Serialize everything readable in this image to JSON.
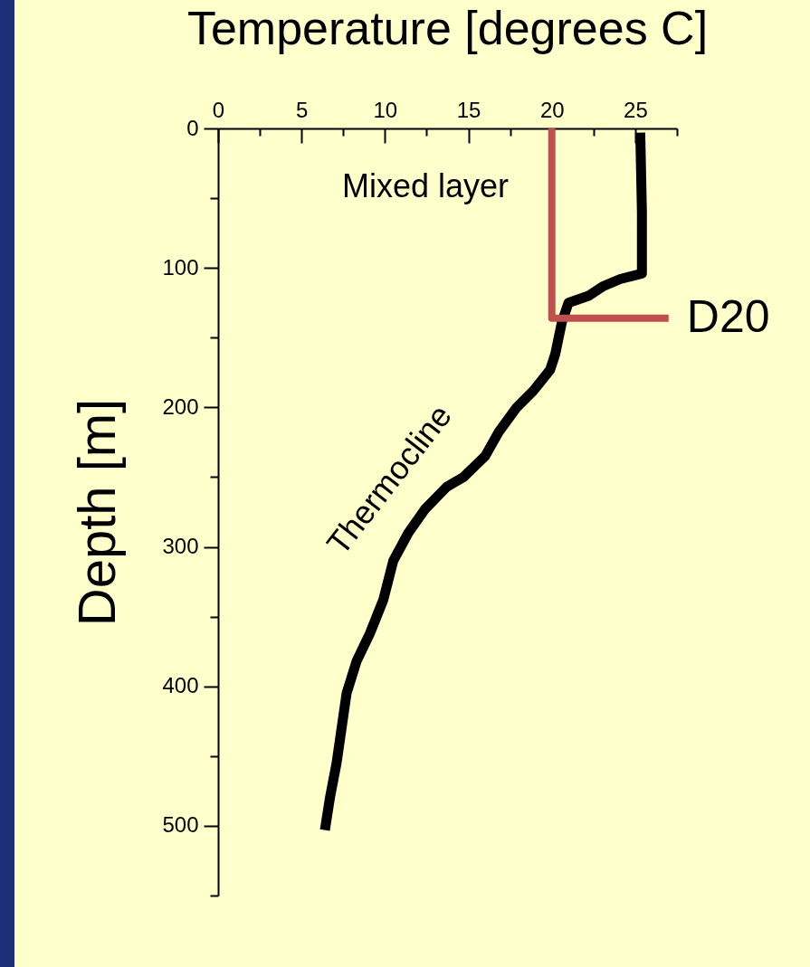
{
  "chart_data": {
    "type": "line",
    "title": "Temperature [degrees C]",
    "ylabel": "Depth [m]",
    "xlim": [
      0,
      27.5
    ],
    "ylim": [
      550,
      0
    ],
    "xticks": [
      0,
      {
        "value": 2.5,
        "label": null
      },
      5,
      {
        "value": 7.5,
        "label": null
      },
      10,
      {
        "value": 12.5,
        "label": null
      },
      15,
      {
        "value": 17.5,
        "label": null
      },
      20,
      {
        "value": 22.5,
        "label": null
      },
      25,
      {
        "value": 27.5,
        "label": null
      }
    ],
    "yticks": [
      0,
      {
        "value": 50,
        "label": null
      },
      100,
      {
        "value": 150,
        "label": null
      },
      200,
      {
        "value": 250,
        "label": null
      },
      300,
      {
        "value": 350,
        "label": null
      },
      400,
      {
        "value": 450,
        "label": null
      },
      500,
      {
        "value": 550,
        "label": null
      }
    ],
    "series": [
      {
        "color": "#000000",
        "x": [
          25.3,
          25.4,
          25.4,
          24.1,
          23.1,
          22.2,
          21.0,
          20.6,
          20.2,
          19.9,
          18.9,
          17.9,
          16.8,
          16.0,
          14.7,
          13.7,
          12.4,
          11.4,
          10.5,
          9.9,
          9.1,
          8.3,
          7.7,
          7.4,
          7.1,
          6.7,
          6.4
        ],
        "values": [
          3,
          60,
          104,
          108,
          113,
          120,
          125,
          139,
          162,
          173,
          188,
          200,
          218,
          235,
          250,
          257,
          273,
          290,
          310,
          338,
          362,
          382,
          405,
          430,
          455,
          480,
          503
        ]
      },
      {
        "name": "D20",
        "color": "#c0504d",
        "x": [
          20,
          20,
          27
        ],
        "values": [
          0,
          136,
          136
        ]
      }
    ],
    "annotations": [
      "Mixed layer",
      "Thermocline"
    ],
    "grid": false,
    "marker": "none",
    "line_style": "solid"
  }
}
